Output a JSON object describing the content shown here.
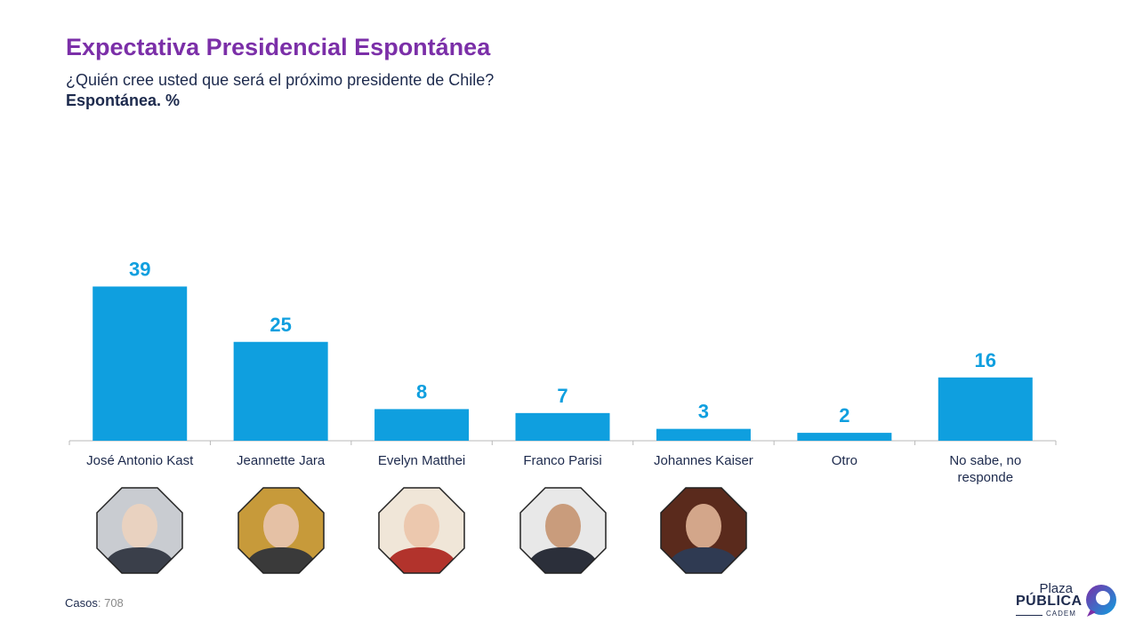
{
  "title": "Expectativa Presidencial Espontánea",
  "subtitle": "¿Quién cree usted que será el próximo presidente de Chile?",
  "unit": "Espontánea. %",
  "footer": {
    "casos_label": "Casos",
    "casos_value": ": 708"
  },
  "logo": {
    "line1": "Plaza",
    "line2": "PÚBLICA",
    "line3": "CADEM"
  },
  "photos": [
    "José Antonio Kast",
    "Jeannette Jara",
    "Evelyn Matthei",
    "Franco Parisi",
    "Johannes Kaiser"
  ],
  "colors": {
    "bar": "#0f9fdf",
    "title": "#7b2fa8",
    "text": "#1d2a4d"
  },
  "chart_data": {
    "type": "bar",
    "categories": [
      "José Antonio Kast",
      "Jeannette Jara",
      "Evelyn Matthei",
      "Franco Parisi",
      "Johannes Kaiser",
      "Otro",
      "No sabe, no responde"
    ],
    "values": [
      39,
      25,
      8,
      7,
      3,
      2,
      16
    ],
    "title": "Expectativa Presidencial Espontánea",
    "ylabel": "",
    "xlabel": "",
    "ylim": [
      0,
      40
    ],
    "grid": false,
    "legend": "none"
  }
}
